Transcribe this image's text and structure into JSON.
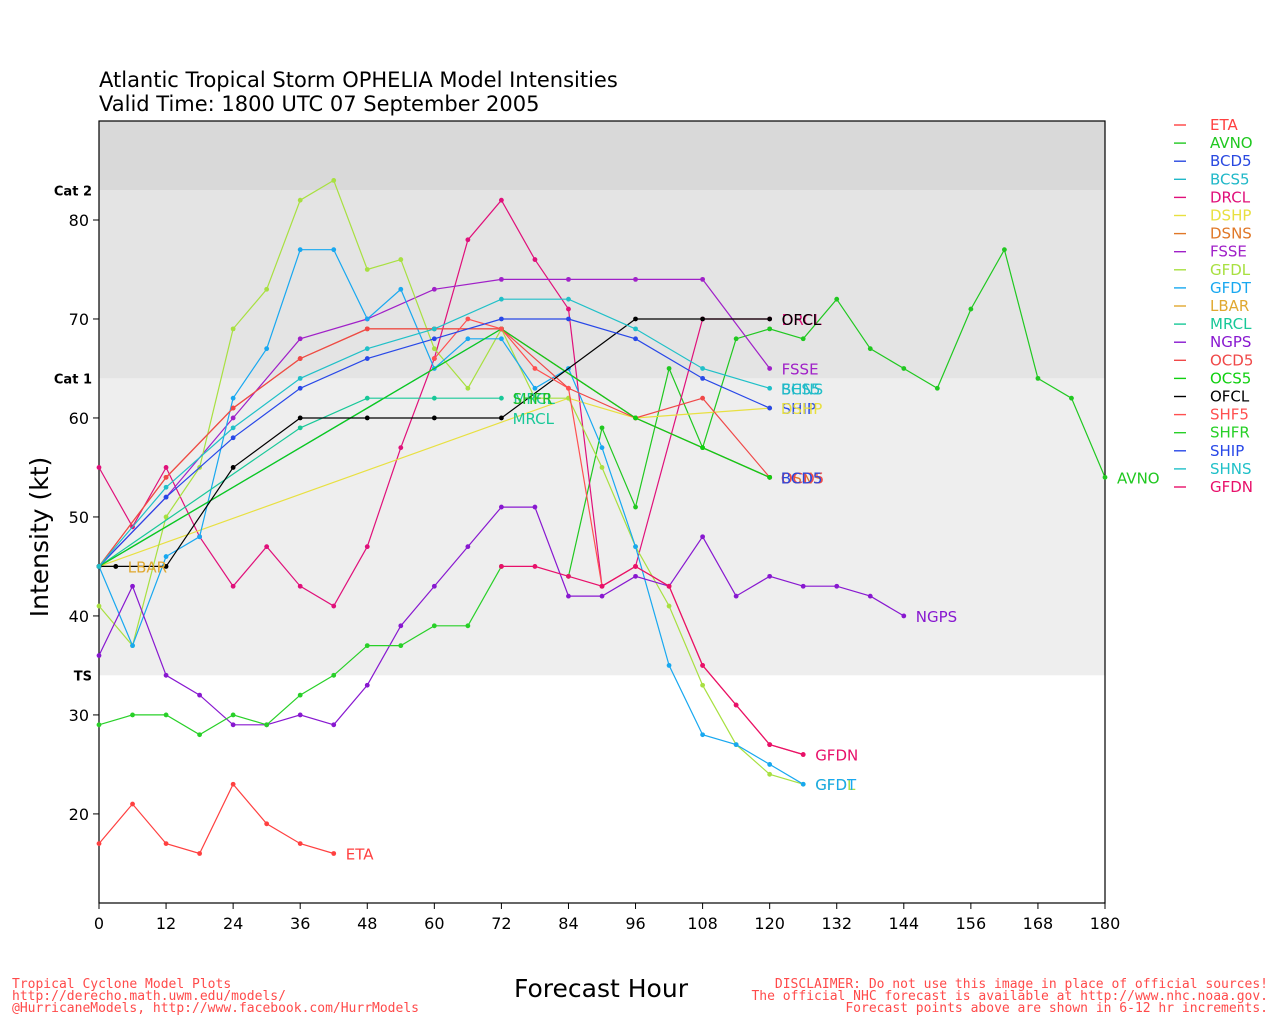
{
  "title_line1": "Atlantic Tropical Storm OPHELIA Model Intensities",
  "title_line2": "Valid Time: 1800 UTC 07 September 2005",
  "footer_left": [
    "Tropical Cyclone Model Plots",
    "http://derecho.math.uwm.edu/models/",
    "@HurricaneModels, http://www.facebook.com/HurrModels"
  ],
  "footer_right": [
    "DISCLAIMER: Do not use this image in place of official sources!",
    "The official NHC forecast is available at http://www.nhc.noaa.gov.",
    "Forecast points above are shown in 6-12 hr increments."
  ],
  "chart_data": {
    "type": "line",
    "xlabel": "Forecast Hour",
    "ylabel": "Intensity (kt)",
    "xlim": [
      0,
      180
    ],
    "ylim": [
      11,
      90
    ],
    "xticks": [
      0,
      12,
      24,
      36,
      48,
      60,
      72,
      84,
      96,
      108,
      120,
      132,
      144,
      156,
      168,
      180
    ],
    "yticks": [
      20,
      30,
      40,
      50,
      60,
      70,
      80
    ],
    "categories_bands": [
      {
        "label": "TS",
        "from": 34,
        "to": 64,
        "color": "#eeeeee"
      },
      {
        "label": "Cat 1",
        "from": 64,
        "to": 83,
        "color": "#e4e4e4"
      },
      {
        "label": "Cat 2",
        "from": 83,
        "to": 96,
        "color": "#d9d9d9"
      }
    ],
    "band_labels": [
      {
        "label": "TS",
        "y": 34
      },
      {
        "label": "Cat 1",
        "y": 64
      },
      {
        "label": "Cat 2",
        "y": 83
      }
    ],
    "legend_position": "right",
    "series": [
      {
        "name": "ETA",
        "color": "#ff4040",
        "x": [
          0,
          6,
          12,
          18,
          24,
          30,
          36,
          42
        ],
        "y": [
          17,
          21,
          17,
          16,
          23,
          19,
          17,
          16
        ],
        "end_label": "ETA"
      },
      {
        "name": "AVNO",
        "color": "#20c820",
        "x": [
          84,
          90,
          96,
          102,
          108,
          114,
          120,
          126,
          132,
          138,
          144,
          150,
          156,
          162,
          168,
          174,
          180
        ],
        "y": [
          44,
          59,
          51,
          65,
          57,
          68,
          69,
          68,
          72,
          67,
          65,
          63,
          71,
          77,
          64,
          62,
          54
        ],
        "end_label": "AVNO"
      },
      {
        "name": "BCD5",
        "color": "#2848e0",
        "x": [
          0,
          72,
          96,
          120
        ],
        "y": [
          45,
          69,
          60,
          54
        ],
        "end_label": ""
      },
      {
        "name": "BCS5",
        "color": "#20b8c8",
        "x": [
          0,
          72,
          96,
          120
        ],
        "y": [
          45,
          69,
          60,
          54
        ],
        "end_label": ""
      },
      {
        "name": "DRCL",
        "color": "#e0107a",
        "x": [
          0,
          6,
          12,
          18,
          24,
          30,
          36,
          42,
          48,
          54,
          60,
          66,
          72,
          78,
          84,
          90,
          96,
          108,
          120
        ],
        "y": [
          55,
          49,
          55,
          48,
          43,
          47,
          43,
          41,
          47,
          57,
          66,
          78,
          82,
          76,
          71,
          43,
          45,
          70,
          70
        ],
        "end_label": "DRCL"
      },
      {
        "name": "DSHP",
        "color": "#e8e040",
        "x": [
          0,
          84,
          96,
          120
        ],
        "y": [
          45,
          62,
          60,
          61
        ],
        "end_label": ""
      },
      {
        "name": "DSNS",
        "color": "#e07828",
        "x": [
          0,
          12,
          24,
          36,
          48,
          60,
          72,
          96,
          120
        ],
        "y": [
          45,
          54,
          61,
          66,
          69,
          69,
          69,
          60,
          54
        ],
        "end_label": ""
      },
      {
        "name": "FSSE",
        "color": "#a020c8",
        "x": [
          0,
          12,
          24,
          36,
          48,
          60,
          72,
          84,
          96,
          108,
          120
        ],
        "y": [
          45,
          52,
          60,
          68,
          70,
          73,
          74,
          74,
          74,
          74,
          65
        ],
        "end_label": "FSSE"
      },
      {
        "name": "GFDL",
        "color": "#a8e040",
        "x": [
          0,
          6,
          12,
          18,
          24,
          30,
          36,
          42,
          48,
          54,
          60,
          66,
          72,
          78,
          84,
          90,
          96,
          102,
          108,
          114,
          120,
          126
        ],
        "y": [
          41,
          37,
          50,
          55,
          69,
          73,
          82,
          84,
          75,
          76,
          67,
          63,
          69,
          62,
          62,
          55,
          47,
          41,
          33,
          27,
          24,
          23
        ],
        "end_label": "GFDL"
      },
      {
        "name": "GFDT",
        "color": "#18a8f0",
        "x": [
          0,
          6,
          12,
          18,
          24,
          30,
          36,
          42,
          48,
          54,
          60,
          66,
          72,
          78,
          84,
          90,
          96,
          102,
          108,
          114,
          120,
          126
        ],
        "y": [
          45,
          37,
          46,
          48,
          62,
          67,
          77,
          77,
          70,
          73,
          65,
          68,
          68,
          63,
          65,
          57,
          47,
          35,
          28,
          27,
          25,
          23
        ],
        "end_label": "GFDT"
      },
      {
        "name": "LBAR",
        "color": "#e0a830",
        "x": [
          0,
          3
        ],
        "y": [
          45,
          45
        ],
        "end_label": "LBAR"
      },
      {
        "name": "MRCL",
        "color": "#18c898",
        "x": [
          0,
          36,
          48,
          60,
          72
        ],
        "y": [
          45,
          59,
          62,
          62,
          62
        ],
        "end_label": "MRCL"
      },
      {
        "name": "NGPS",
        "color": "#8818d0",
        "x": [
          0,
          6,
          12,
          18,
          24,
          30,
          36,
          42,
          48,
          54,
          60,
          66,
          72,
          78,
          84,
          90,
          96,
          102,
          108,
          114,
          120,
          126,
          132,
          138,
          144
        ],
        "y": [
          36,
          43,
          34,
          32,
          29,
          29,
          30,
          29,
          33,
          39,
          43,
          47,
          51,
          51,
          42,
          42,
          44,
          43,
          48,
          42,
          44,
          43,
          43,
          42,
          40
        ],
        "end_label": "NGPS"
      },
      {
        "name": "OCD5",
        "color": "#f04848",
        "x": [
          0,
          12,
          24,
          36,
          48,
          60,
          72,
          84,
          96,
          108,
          120
        ],
        "y": [
          45,
          54,
          61,
          66,
          69,
          69,
          69,
          63,
          60,
          62,
          54
        ],
        "end_label": ""
      },
      {
        "name": "OCS5",
        "color": "#10d010",
        "x": [
          0,
          72,
          96,
          108,
          120
        ],
        "y": [
          45,
          69,
          60,
          57,
          54
        ],
        "end_label": ""
      },
      {
        "name": "OFCL",
        "color": "#000000",
        "x": [
          0,
          3,
          12,
          24,
          36,
          48,
          60,
          72,
          96,
          108,
          120
        ],
        "y": [
          45,
          45,
          45,
          55,
          60,
          60,
          60,
          60,
          70,
          70,
          70
        ],
        "end_label": "OFCL"
      },
      {
        "name": "SHF5",
        "color": "#ff5050",
        "x": [
          60,
          66,
          72,
          78,
          84,
          90,
          96,
          102,
          108,
          114,
          120,
          126
        ],
        "y": [
          66,
          70,
          69,
          65,
          63,
          43,
          45,
          43,
          35,
          31,
          27,
          26
        ],
        "end_label": ""
      },
      {
        "name": "SHFR",
        "color": "#28d028",
        "x": [
          0,
          6,
          12,
          18,
          24,
          30,
          36,
          42,
          48,
          54,
          60,
          66,
          72
        ],
        "y": [
          29,
          30,
          30,
          28,
          30,
          29,
          32,
          34,
          37,
          37,
          39,
          39,
          45
        ],
        "end_label": ""
      },
      {
        "name": "SHIP",
        "color": "#2848e8",
        "x": [
          0,
          12,
          24,
          36,
          48,
          60,
          72,
          84,
          96,
          108,
          120
        ],
        "y": [
          45,
          52,
          58,
          63,
          66,
          68,
          70,
          70,
          68,
          64,
          61
        ],
        "end_label": "SHIP"
      },
      {
        "name": "SHNS",
        "color": "#20c0c8",
        "x": [
          0,
          12,
          24,
          36,
          48,
          60,
          72,
          84,
          96,
          108,
          120
        ],
        "y": [
          45,
          53,
          59,
          64,
          67,
          69,
          72,
          72,
          69,
          65,
          63
        ],
        "end_label": "SHNS"
      },
      {
        "name": "GFDN",
        "color": "#e8106a",
        "x": [
          72,
          78,
          84,
          90,
          96,
          102,
          108,
          114,
          120,
          126
        ],
        "y": [
          45,
          45,
          44,
          43,
          45,
          43,
          35,
          31,
          27,
          26
        ],
        "end_label": "GFDN"
      }
    ],
    "extra_labels": [
      {
        "text": "SHFR",
        "color": "#20c020",
        "x": 74,
        "y": 62
      },
      {
        "text": "MRCL",
        "color": "#18c898",
        "x": 74,
        "y": 60
      },
      {
        "text": "DSHP",
        "color": "#e8e040",
        "x": 122,
        "y": 61
      },
      {
        "text": "DSNS",
        "color": "#e07828",
        "x": 122,
        "y": 54
      },
      {
        "text": "OCD5",
        "color": "#f04848",
        "x": 122,
        "y": 54
      },
      {
        "text": "BCD5",
        "color": "#2848e0",
        "x": 122,
        "y": 54
      },
      {
        "text": "BCS5",
        "color": "#20b8c8",
        "x": 122,
        "y": 63
      }
    ]
  }
}
